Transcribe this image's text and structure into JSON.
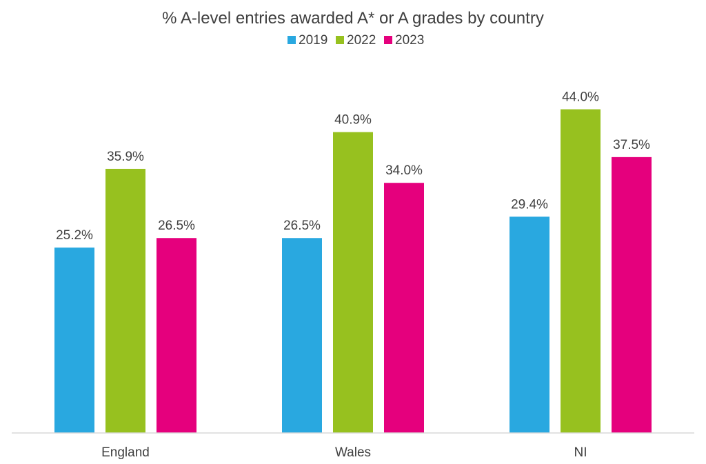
{
  "chart_data": {
    "type": "bar",
    "title": "% A-level entries awarded A* or A grades by country",
    "categories": [
      "England",
      "Wales",
      "NI"
    ],
    "series": [
      {
        "name": "2019",
        "color": "#29a8e0",
        "values": [
          25.2,
          26.5,
          29.4
        ],
        "labels": [
          "25.2%",
          "26.5%",
          "29.4%"
        ]
      },
      {
        "name": "2022",
        "color": "#97c11f",
        "values": [
          35.9,
          40.9,
          44.0
        ],
        "labels": [
          "35.9%",
          "40.9%",
          "44.0%"
        ]
      },
      {
        "name": "2023",
        "color": "#e5007d",
        "values": [
          26.5,
          34.0,
          37.5
        ],
        "labels": [
          "26.5%",
          "34.0%",
          "37.5%"
        ]
      }
    ],
    "xlabel": "",
    "ylabel": "",
    "ylim": [
      0,
      50
    ],
    "grid": false,
    "legend_position": "top-center",
    "axis_line_color": "#d9d9d9"
  }
}
